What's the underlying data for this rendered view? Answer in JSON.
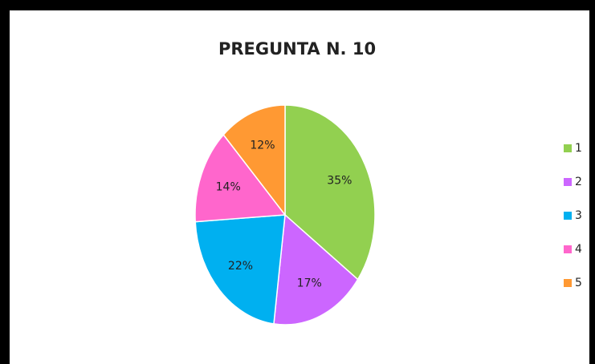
{
  "chart_data": {
    "type": "pie",
    "title": "PREGUNTA N. 10",
    "categories": [
      "1",
      "2",
      "3",
      "4",
      "5"
    ],
    "values": [
      35,
      17,
      22,
      14,
      12
    ],
    "value_labels": [
      "35%",
      "17%",
      "22%",
      "14%",
      "12%"
    ],
    "colors": [
      "#92d050",
      "#cc66ff",
      "#00b0f0",
      "#ff66cc",
      "#ff9933"
    ],
    "legend": "right"
  }
}
